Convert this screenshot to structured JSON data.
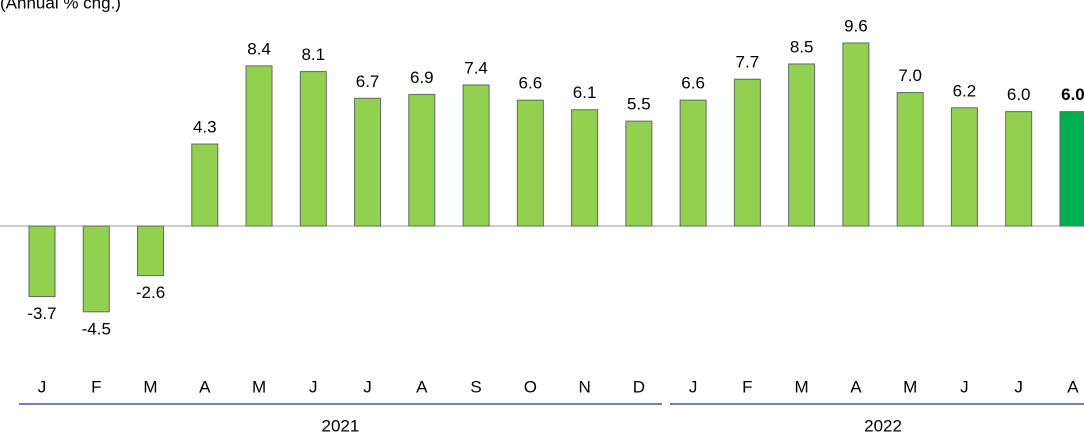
{
  "chart_data": {
    "type": "bar",
    "subtitle": "(Annual % chg.)",
    "color": "#92d050",
    "highlight_color": "#00b050",
    "ylim": [
      -6,
      11
    ],
    "groups": [
      {
        "label": "2021",
        "categories": [
          "J",
          "F",
          "M",
          "A",
          "M",
          "J",
          "J",
          "A",
          "S",
          "O",
          "N",
          "D"
        ],
        "values": [
          -3.7,
          -4.5,
          -2.6,
          4.3,
          8.4,
          8.1,
          6.7,
          6.9,
          7.4,
          6.6,
          6.1,
          5.5
        ],
        "value_labels": [
          "-3.7",
          "-4.5",
          "-2.6",
          "4.3",
          "8.4",
          "8.1",
          "6.7",
          "6.9",
          "7.4",
          "6.6",
          "6.1",
          "5.5"
        ],
        "colors": [
          "#92d050",
          "#92d050",
          "#92d050",
          "#92d050",
          "#92d050",
          "#92d050",
          "#92d050",
          "#92d050",
          "#92d050",
          "#92d050",
          "#92d050",
          "#92d050"
        ]
      },
      {
        "label": "2022",
        "categories": [
          "J",
          "F",
          "M",
          "A",
          "M",
          "J",
          "J",
          "A"
        ],
        "values": [
          6.6,
          7.7,
          8.5,
          9.6,
          7.0,
          6.2,
          6.0,
          6.0
        ],
        "value_labels": [
          "6.6",
          "7.7",
          "8.5",
          "9.6",
          "7.0",
          "6.2",
          "6.0",
          "6.0"
        ],
        "colors": [
          "#92d050",
          "#92d050",
          "#92d050",
          "#92d050",
          "#92d050",
          "#92d050",
          "#92d050",
          "#00b050"
        ]
      }
    ]
  }
}
